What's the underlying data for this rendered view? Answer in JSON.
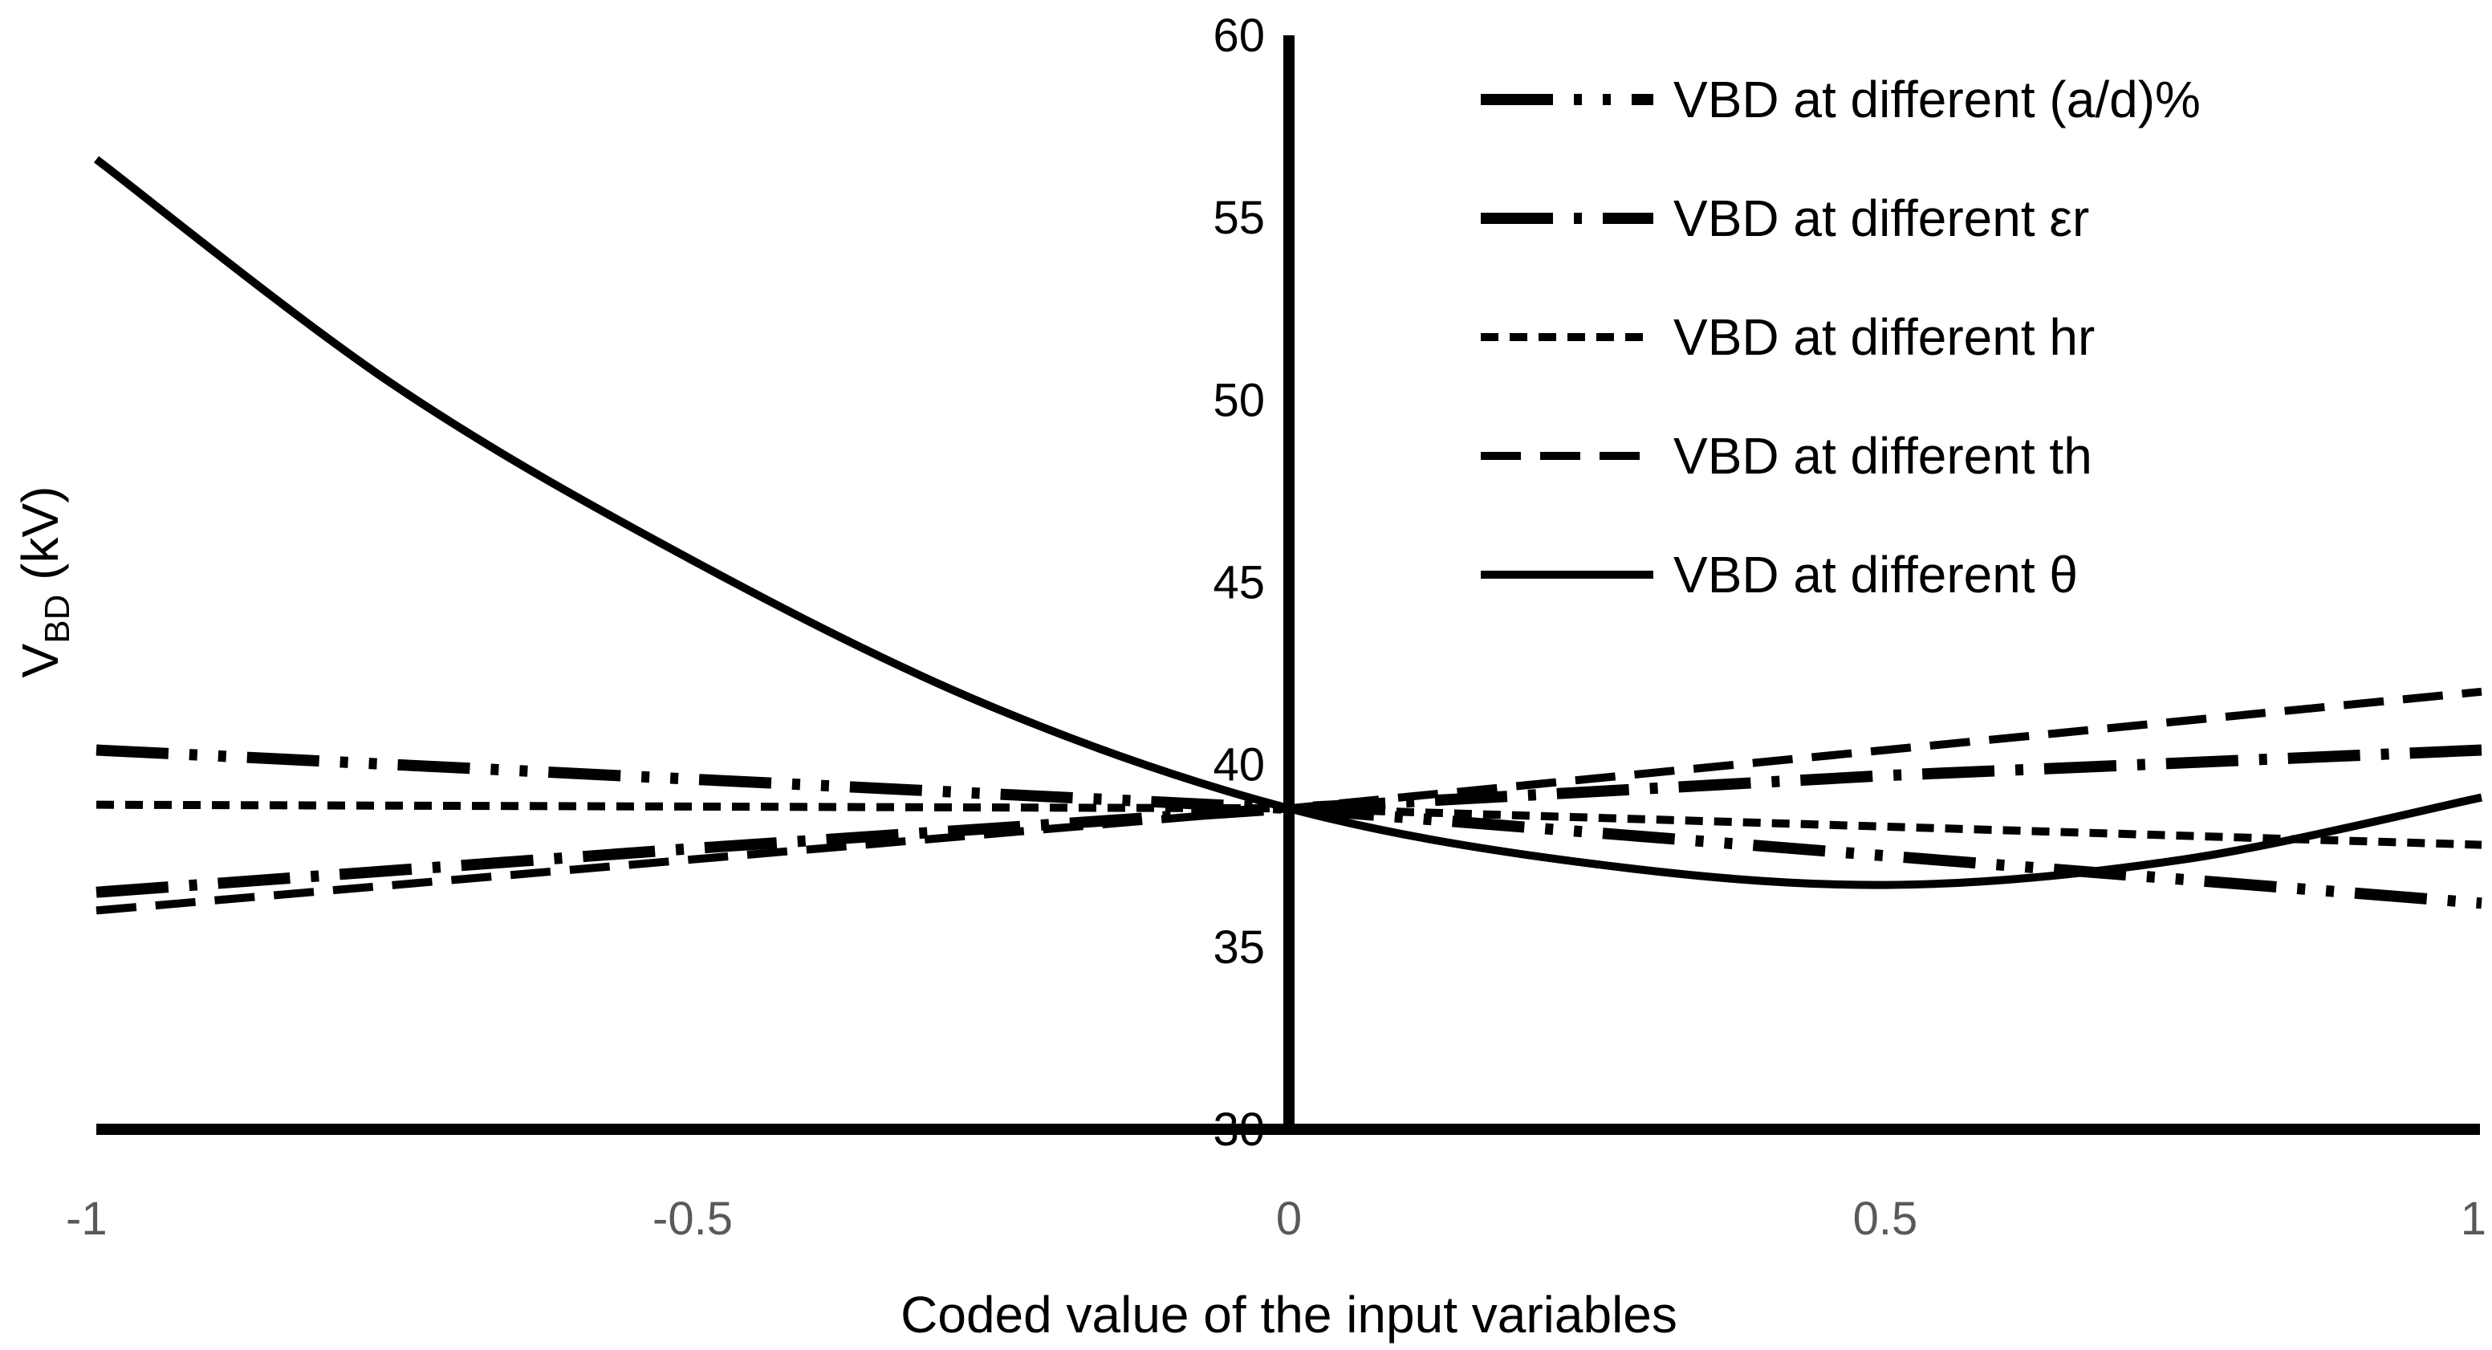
{
  "chart_data": {
    "type": "line",
    "title": "",
    "xlabel": "Coded value of the input variables",
    "ylabel_main": "V",
    "ylabel_sub": "BD",
    "ylabel_unit": " (kV)",
    "xlim": [
      -1,
      1
    ],
    "ylim": [
      30,
      60
    ],
    "x_ticks": [
      -1,
      -0.5,
      0,
      0.5,
      1
    ],
    "x_tick_labels": [
      "-1",
      "-0.5",
      "0",
      "0.5",
      "1"
    ],
    "y_ticks": [
      30,
      35,
      40,
      45,
      50,
      55,
      60
    ],
    "y_tick_labels": [
      "30",
      "35",
      "40",
      "45",
      "50",
      "55",
      "60"
    ],
    "grid": false,
    "legend_position": "top-right",
    "series": [
      {
        "name": "VBD at different (a/d)%",
        "style": "long-dash-dot-dot",
        "x": [
          -1,
          -0.5,
          0,
          0.5,
          1
        ],
        "y": [
          40.4,
          39.6,
          38.8,
          37.5,
          36.2
        ]
      },
      {
        "name": "VBD at different εr",
        "style": "long-dash-dot",
        "x": [
          -1,
          -0.5,
          0,
          0.5,
          1
        ],
        "y": [
          36.5,
          37.7,
          38.8,
          39.7,
          40.4
        ]
      },
      {
        "name": "VBD at different hr",
        "style": "short-dash",
        "x": [
          -1,
          -0.5,
          0,
          0.5,
          1
        ],
        "y": [
          38.9,
          38.85,
          38.8,
          38.3,
          37.8
        ]
      },
      {
        "name": "VBD at different th",
        "style": "dash",
        "x": [
          -1,
          -0.5,
          0,
          0.5,
          1
        ],
        "y": [
          36.0,
          37.4,
          38.8,
          40.4,
          42.0
        ]
      },
      {
        "name": "VBD at different θ",
        "style": "solid",
        "x": [
          -1,
          -0.75,
          -0.5,
          -0.25,
          0,
          0.25,
          0.5,
          0.75,
          1
        ],
        "y": [
          56.6,
          50.4,
          45.6,
          41.6,
          38.8,
          37.3,
          36.7,
          37.4,
          39.1
        ]
      }
    ]
  }
}
